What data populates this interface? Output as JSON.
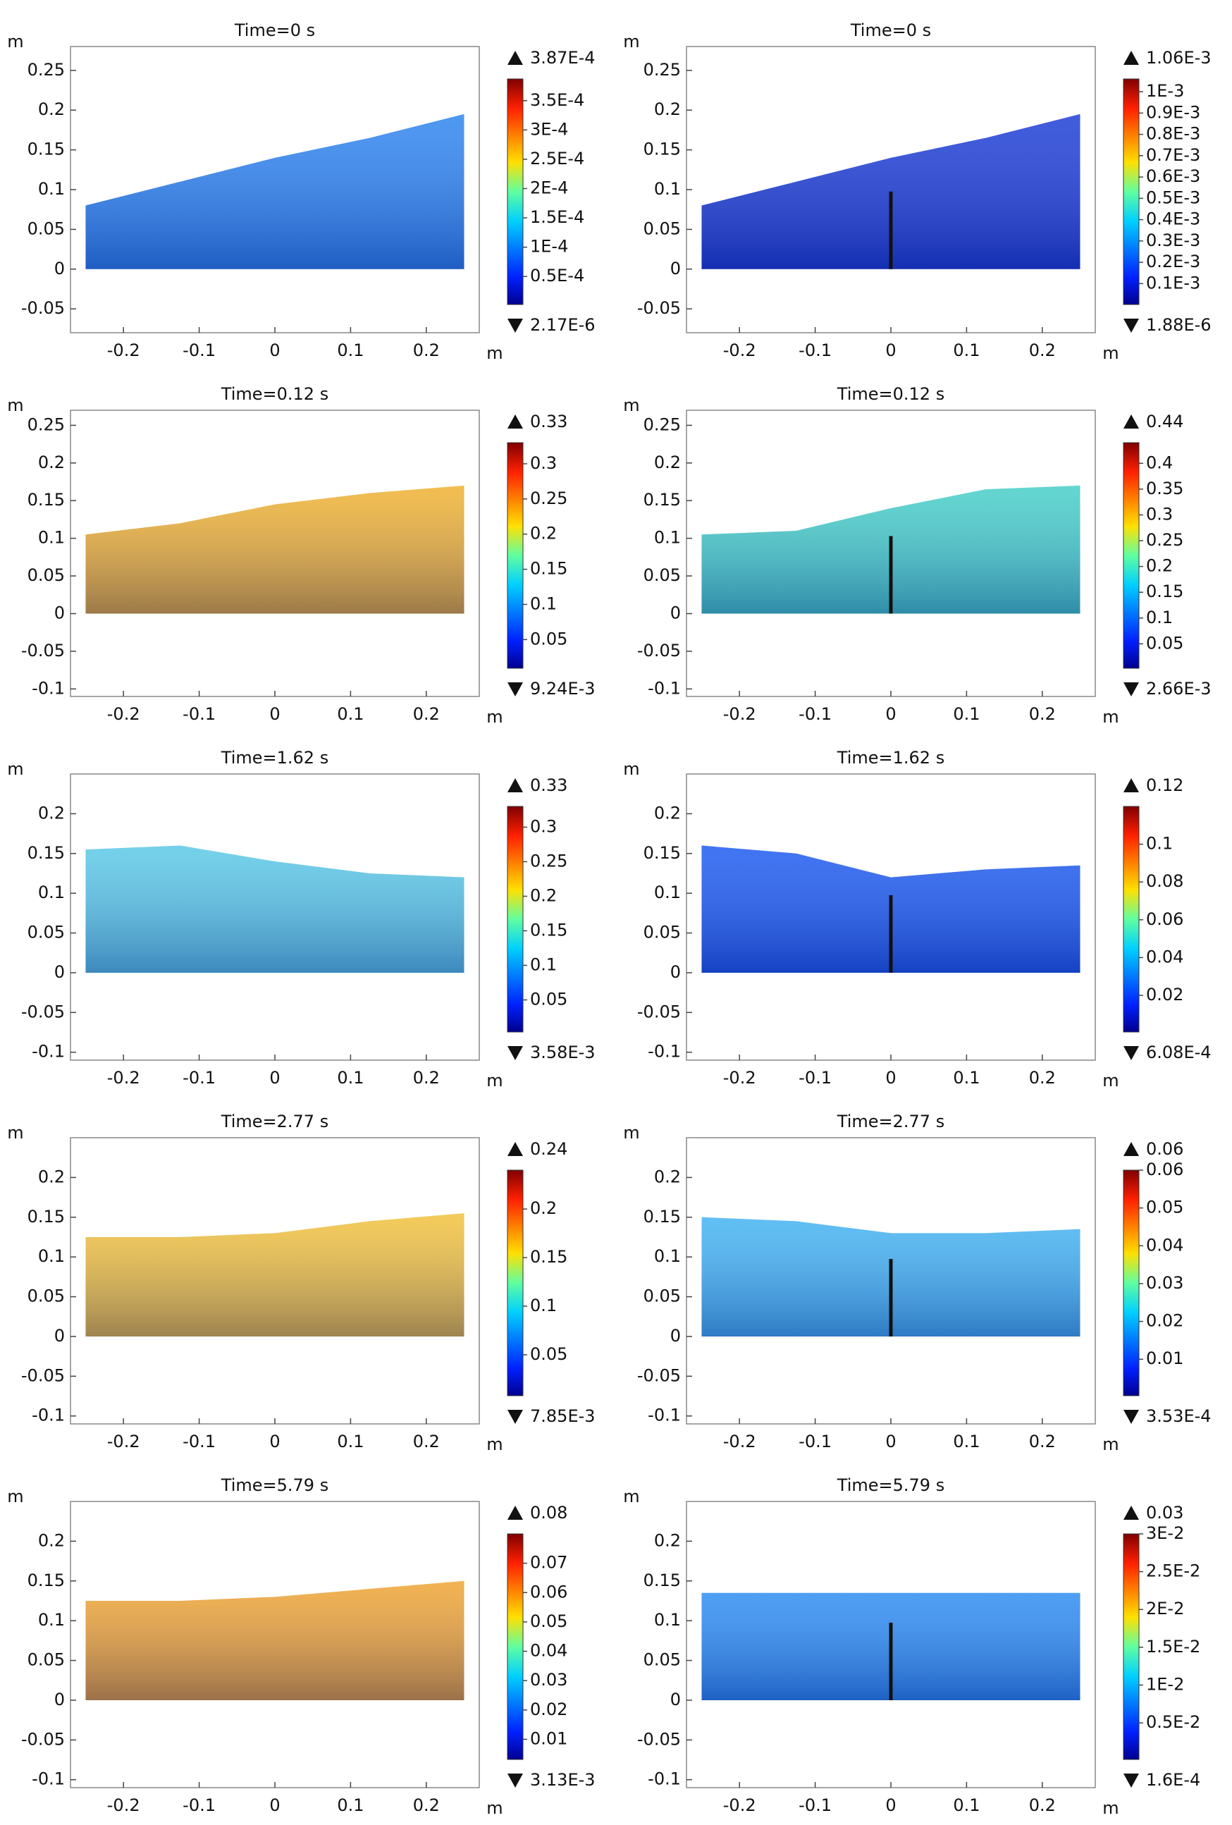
{
  "chart_data": [
    {
      "type": "heatmap",
      "title": "Time=0 s",
      "x_unit": "m",
      "y_unit": "m",
      "xlim": [
        -0.27,
        0.27
      ],
      "ylim": [
        -0.08,
        0.28
      ],
      "xticks": [
        -0.2,
        -0.1,
        0,
        0.1,
        0.2
      ],
      "yticks": [
        -0.05,
        0,
        0.05,
        0.1,
        0.15,
        0.2,
        0.25
      ],
      "surface_x": [
        -0.25,
        -0.125,
        0,
        0.125,
        0.25
      ],
      "surface_y": [
        0.08,
        0.11,
        0.14,
        0.165,
        0.195
      ],
      "color": "#2f86f0",
      "plate": false,
      "clim": [
        2.17e-06,
        0.000387
      ],
      "cmax": {
        "value": 0.000387,
        "label": "3.87E-4"
      },
      "cmin": {
        "value": 2.17e-06,
        "label": "2.17E-6"
      },
      "cticks": [
        {
          "value": 0.00035,
          "label": "3.5E-4"
        },
        {
          "value": 0.0003,
          "label": "3E-4"
        },
        {
          "value": 0.00025,
          "label": "2.5E-4"
        },
        {
          "value": 0.0002,
          "label": "2E-4"
        },
        {
          "value": 0.00015,
          "label": "1.5E-4"
        },
        {
          "value": 0.0001,
          "label": "1E-4"
        },
        {
          "value": 5e-05,
          "label": "0.5E-4"
        }
      ]
    },
    {
      "type": "heatmap",
      "title": "Time=0 s",
      "x_unit": "m",
      "y_unit": "m",
      "xlim": [
        -0.27,
        0.27
      ],
      "ylim": [
        -0.08,
        0.28
      ],
      "xticks": [
        -0.2,
        -0.1,
        0,
        0.1,
        0.2
      ],
      "yticks": [
        -0.05,
        0,
        0.05,
        0.1,
        0.15,
        0.2,
        0.25
      ],
      "surface_x": [
        -0.25,
        -0.125,
        0,
        0.125,
        0.25
      ],
      "surface_y": [
        0.08,
        0.11,
        0.14,
        0.165,
        0.195
      ],
      "color": "#1f3fd6",
      "plate": true,
      "clim": [
        1.88e-06,
        0.00106
      ],
      "cmax": {
        "value": 0.00106,
        "label": "1.06E-3"
      },
      "cmin": {
        "value": 1.88e-06,
        "label": "1.88E-6"
      },
      "cticks": [
        {
          "value": 0.001,
          "label": "1E-3"
        },
        {
          "value": 0.0009,
          "label": "0.9E-3"
        },
        {
          "value": 0.0008,
          "label": "0.8E-3"
        },
        {
          "value": 0.0007,
          "label": "0.7E-3"
        },
        {
          "value": 0.0006,
          "label": "0.6E-3"
        },
        {
          "value": 0.0005,
          "label": "0.5E-3"
        },
        {
          "value": 0.0004,
          "label": "0.4E-3"
        },
        {
          "value": 0.0003,
          "label": "0.3E-3"
        },
        {
          "value": 0.0002,
          "label": "0.2E-3"
        },
        {
          "value": 0.0001,
          "label": "0.1E-3"
        }
      ]
    },
    {
      "type": "heatmap",
      "title": "Time=0.12 s",
      "x_unit": "m",
      "y_unit": "m",
      "xlim": [
        -0.27,
        0.27
      ],
      "ylim": [
        -0.11,
        0.27
      ],
      "xticks": [
        -0.2,
        -0.1,
        0,
        0.1,
        0.2
      ],
      "yticks": [
        -0.1,
        -0.05,
        0,
        0.05,
        0.1,
        0.15,
        0.2,
        0.25
      ],
      "surface_x": [
        -0.25,
        -0.125,
        0,
        0.125,
        0.25
      ],
      "surface_y": [
        0.105,
        0.12,
        0.145,
        0.16,
        0.17
      ],
      "color": "#f0b233",
      "plate": false,
      "clim": [
        0.00924,
        0.33
      ],
      "cmax": 0.33,
      "cmin": {
        "value": 0.00924,
        "label": "9.24E-3"
      },
      "cticks": [
        0.3,
        0.25,
        0.2,
        0.15,
        0.1,
        0.05
      ]
    },
    {
      "type": "heatmap",
      "title": "Time=0.12 s",
      "x_unit": "m",
      "y_unit": "m",
      "xlim": [
        -0.27,
        0.27
      ],
      "ylim": [
        -0.11,
        0.27
      ],
      "xticks": [
        -0.2,
        -0.1,
        0,
        0.1,
        0.2
      ],
      "yticks": [
        -0.1,
        -0.05,
        0,
        0.05,
        0.1,
        0.15,
        0.2,
        0.25
      ],
      "surface_x": [
        -0.25,
        -0.125,
        0,
        0.125,
        0.25
      ],
      "surface_y": [
        0.105,
        0.11,
        0.14,
        0.165,
        0.17
      ],
      "color": "#48cfc8",
      "plate": true,
      "clim": [
        0.00266,
        0.44
      ],
      "cmax": 0.44,
      "cmin": {
        "value": 0.00266,
        "label": "2.66E-3"
      },
      "cticks": [
        0.4,
        0.35,
        0.3,
        0.25,
        0.2,
        0.15,
        0.1,
        0.05
      ]
    },
    {
      "type": "heatmap",
      "title": "Time=1.62 s",
      "x_unit": "m",
      "y_unit": "m",
      "xlim": [
        -0.27,
        0.27
      ],
      "ylim": [
        -0.11,
        0.25
      ],
      "xticks": [
        -0.2,
        -0.1,
        0,
        0.1,
        0.2
      ],
      "yticks": [
        -0.1,
        -0.05,
        0,
        0.05,
        0.1,
        0.15,
        0.2
      ],
      "surface_x": [
        -0.25,
        -0.125,
        0,
        0.125,
        0.25
      ],
      "surface_y": [
        0.155,
        0.16,
        0.14,
        0.125,
        0.12
      ],
      "color": "#5cc9e6",
      "plate": false,
      "clim": [
        0.00358,
        0.33
      ],
      "cmax": 0.33,
      "cmin": {
        "value": 0.00358,
        "label": "3.58E-3"
      },
      "cticks": [
        0.3,
        0.25,
        0.2,
        0.15,
        0.1,
        0.05
      ]
    },
    {
      "type": "heatmap",
      "title": "Time=1.62 s",
      "x_unit": "m",
      "y_unit": "m",
      "xlim": [
        -0.27,
        0.27
      ],
      "ylim": [
        -0.11,
        0.25
      ],
      "xticks": [
        -0.2,
        -0.1,
        0,
        0.1,
        0.2
      ],
      "yticks": [
        -0.1,
        -0.05,
        0,
        0.05,
        0.1,
        0.15,
        0.2
      ],
      "surface_x": [
        -0.25,
        -0.125,
        0,
        0.125,
        0.25
      ],
      "surface_y": [
        0.16,
        0.15,
        0.12,
        0.13,
        0.135
      ],
      "color": "#1f5cf0",
      "plate": true,
      "clim": [
        0.000608,
        0.12
      ],
      "cmax": 0.12,
      "cmin": {
        "value": 0.000608,
        "label": "6.08E-4"
      },
      "cticks": [
        0.1,
        0.08,
        0.06,
        0.04,
        0.02
      ]
    },
    {
      "type": "heatmap",
      "title": "Time=2.77 s",
      "x_unit": "m",
      "y_unit": "m",
      "xlim": [
        -0.27,
        0.27
      ],
      "ylim": [
        -0.11,
        0.25
      ],
      "xticks": [
        -0.2,
        -0.1,
        0,
        0.1,
        0.2
      ],
      "yticks": [
        -0.1,
        -0.05,
        0,
        0.05,
        0.1,
        0.15,
        0.2
      ],
      "surface_x": [
        -0.25,
        -0.125,
        0,
        0.125,
        0.25
      ],
      "surface_y": [
        0.125,
        0.125,
        0.13,
        0.145,
        0.155
      ],
      "color": "#f2c23e",
      "plate": false,
      "clim": [
        0.00785,
        0.24
      ],
      "cmax": 0.24,
      "cmin": {
        "value": 0.00785,
        "label": "7.85E-3"
      },
      "cticks": [
        0.2,
        0.15,
        0.1,
        0.05
      ]
    },
    {
      "type": "heatmap",
      "title": "Time=2.77 s",
      "x_unit": "m",
      "y_unit": "m",
      "xlim": [
        -0.27,
        0.27
      ],
      "ylim": [
        -0.11,
        0.25
      ],
      "xticks": [
        -0.2,
        -0.1,
        0,
        0.1,
        0.2
      ],
      "yticks": [
        -0.1,
        -0.05,
        0,
        0.05,
        0.1,
        0.15,
        0.2
      ],
      "surface_x": [
        -0.25,
        -0.125,
        0,
        0.125,
        0.25
      ],
      "surface_y": [
        0.15,
        0.145,
        0.13,
        0.13,
        0.135
      ],
      "color": "#45b4f2",
      "plate": true,
      "clim": [
        0.000353,
        0.06
      ],
      "cmax": 0.06,
      "cmin": {
        "value": 0.000353,
        "label": "3.53E-4"
      },
      "cticks": [
        0.06,
        0.05,
        0.04,
        0.03,
        0.02,
        0.01
      ]
    },
    {
      "type": "heatmap",
      "title": "Time=5.79 s",
      "x_unit": "m",
      "y_unit": "m",
      "xlim": [
        -0.27,
        0.27
      ],
      "ylim": [
        -0.11,
        0.25
      ],
      "xticks": [
        -0.2,
        -0.1,
        0,
        0.1,
        0.2
      ],
      "yticks": [
        -0.1,
        -0.05,
        0,
        0.05,
        0.1,
        0.15,
        0.2
      ],
      "surface_x": [
        -0.25,
        -0.125,
        0,
        0.125,
        0.25
      ],
      "surface_y": [
        0.125,
        0.125,
        0.13,
        0.14,
        0.15
      ],
      "color": "#f0a534",
      "plate": false,
      "clim": [
        0.00313,
        0.08
      ],
      "cmax": 0.08,
      "cmin": {
        "value": 0.00313,
        "label": "3.13E-3"
      },
      "cticks": [
        0.07,
        0.06,
        0.05,
        0.04,
        0.03,
        0.02,
        0.01
      ]
    },
    {
      "type": "heatmap",
      "title": "Time=5.79 s",
      "x_unit": "m",
      "y_unit": "m",
      "xlim": [
        -0.27,
        0.27
      ],
      "ylim": [
        -0.11,
        0.25
      ],
      "xticks": [
        -0.2,
        -0.1,
        0,
        0.1,
        0.2
      ],
      "yticks": [
        -0.1,
        -0.05,
        0,
        0.05,
        0.1,
        0.15,
        0.2
      ],
      "surface_x": [
        -0.25,
        -0.125,
        0,
        0.125,
        0.25
      ],
      "surface_y": [
        0.135,
        0.135,
        0.135,
        0.135,
        0.135
      ],
      "color": "#2e8df2",
      "plate": true,
      "clim": [
        0.00016,
        0.03
      ],
      "cmax": 0.03,
      "cmin": {
        "value": 0.00016,
        "label": "1.6E-4"
      },
      "cticks": [
        {
          "value": 0.03,
          "label": "3E-2"
        },
        {
          "value": 0.025,
          "label": "2.5E-2"
        },
        {
          "value": 0.02,
          "label": "2E-2"
        },
        {
          "value": 0.015,
          "label": "1.5E-2"
        },
        {
          "value": 0.01,
          "label": "1E-2"
        },
        {
          "value": 0.005,
          "label": "0.5E-2"
        }
      ]
    }
  ]
}
